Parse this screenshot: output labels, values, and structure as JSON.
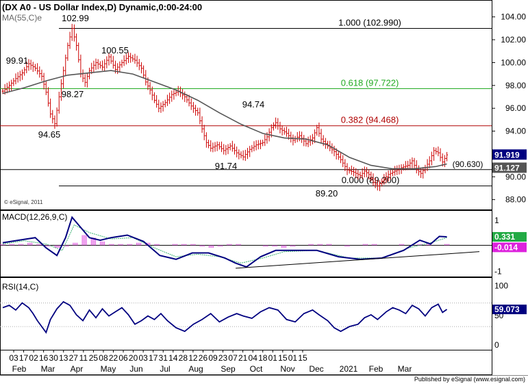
{
  "header": {
    "title": "(DX A0 - US Dollar Index,D) Dynamic,0:00-24:00",
    "ma_label": "MA(55,C)e",
    "copyright": "© eSignal, 2011",
    "published": "Published by eSignal (www.esignal.com)"
  },
  "colors": {
    "price": "#cc0000",
    "ma": "#555555",
    "line": "#000080",
    "fib_green": "#22aa22",
    "fib_red": "#b00000",
    "hist": "#dd44dd",
    "macd_signal": "#3cb371"
  },
  "chart_data": [
    {
      "type": "ohlc",
      "name": "price_panel",
      "title": "(DX A0 - US Dollar Index,D) Dynamic,0:00-24:00",
      "ylim": [
        87.5,
        105
      ],
      "y_ticks": [
        "104.00",
        "102.00",
        "100.00",
        "98.00",
        "96.00",
        "94.00",
        "92.00",
        "90.00",
        "88.00"
      ],
      "y_tick_values": [
        104,
        102,
        100,
        98,
        96,
        94,
        92,
        90,
        88
      ],
      "current_price": "91.919",
      "current_price_value": 91.919,
      "ma_value": "91.127",
      "ma_value_num": 91.127,
      "ma_label": "MA(55,C)e",
      "annotations": [
        {
          "text": "102.99"
        },
        {
          "text": "100.55"
        },
        {
          "text": "99.91"
        },
        {
          "text": "98.27"
        },
        {
          "text": "94.65"
        },
        {
          "text": "94.74"
        },
        {
          "text": "91.74"
        },
        {
          "text": "89.20"
        }
      ],
      "fib_levels": [
        {
          "text": "1.000 (102.990)",
          "value": 102.99,
          "color": "#000000"
        },
        {
          "text": "0.618 (97.722)",
          "value": 97.722,
          "color": "#22aa22"
        },
        {
          "text": "0.382 (94.468)",
          "value": 94.468,
          "color": "#b00000"
        },
        {
          "text": "0.000 (89.200)",
          "value": 89.2,
          "color": "#000000"
        },
        {
          "text": "(90.630)",
          "value": 90.63,
          "color": "#000000"
        }
      ],
      "close_path": [
        [
          0,
          97.5
        ],
        [
          6,
          98
        ],
        [
          12,
          98.6
        ],
        [
          18,
          99.1
        ],
        [
          24,
          99.9
        ],
        [
          30,
          99.5
        ],
        [
          36,
          98.8
        ],
        [
          40,
          97.4
        ],
        [
          44,
          95.5
        ],
        [
          48,
          94.65
        ],
        [
          52,
          97
        ],
        [
          56,
          99.3
        ],
        [
          60,
          101.5
        ],
        [
          64,
          102.99
        ],
        [
          68,
          101.5
        ],
        [
          72,
          99
        ],
        [
          76,
          98.27
        ],
        [
          80,
          99.3
        ],
        [
          86,
          100
        ],
        [
          92,
          99.6
        ],
        [
          98,
          100.5
        ],
        [
          104,
          99.4
        ],
        [
          110,
          100
        ],
        [
          116,
          100.55
        ],
        [
          122,
          100.2
        ],
        [
          128,
          99.5
        ],
        [
          132,
          98.3
        ],
        [
          136,
          97.6
        ],
        [
          140,
          96.7
        ],
        [
          144,
          96
        ],
        [
          150,
          96.5
        ],
        [
          156,
          97.2
        ],
        [
          162,
          97.5
        ],
        [
          168,
          97
        ],
        [
          174,
          96.2
        ],
        [
          180,
          95.6
        ],
        [
          184,
          94.2
        ],
        [
          188,
          93
        ],
        [
          192,
          92.5
        ],
        [
          198,
          92.8
        ],
        [
          204,
          92.3
        ],
        [
          210,
          92.7
        ],
        [
          216,
          92.1
        ],
        [
          222,
          91.74
        ],
        [
          228,
          92.4
        ],
        [
          234,
          92.8
        ],
        [
          240,
          93
        ],
        [
          244,
          93.5
        ],
        [
          248,
          94.3
        ],
        [
          252,
          94.74
        ],
        [
          256,
          94.2
        ],
        [
          262,
          93.8
        ],
        [
          268,
          93.2
        ],
        [
          274,
          93.6
        ],
        [
          280,
          92.9
        ],
        [
          286,
          93.4
        ],
        [
          290,
          94.3
        ],
        [
          294,
          93.3
        ],
        [
          300,
          92.7
        ],
        [
          306,
          92.2
        ],
        [
          312,
          91.5
        ],
        [
          318,
          90.6
        ],
        [
          324,
          90.4
        ],
        [
          330,
          90.1
        ],
        [
          334,
          90.5
        ],
        [
          338,
          90.2
        ],
        [
          342,
          89.5
        ],
        [
          346,
          89.2
        ],
        [
          350,
          89.6
        ],
        [
          356,
          90.2
        ],
        [
          362,
          90.5
        ],
        [
          368,
          90.8
        ],
        [
          374,
          91
        ],
        [
          378,
          91.4
        ],
        [
          382,
          90.6
        ],
        [
          386,
          90.3
        ],
        [
          390,
          90.8
        ],
        [
          394,
          91.4
        ],
        [
          398,
          92.3
        ],
        [
          402,
          92.1
        ],
        [
          406,
          91.3
        ],
        [
          410,
          91.919
        ]
      ],
      "ma_path": [
        [
          0,
          97.3
        ],
        [
          20,
          97.8
        ],
        [
          40,
          98.4
        ],
        [
          60,
          98.9
        ],
        [
          80,
          99.1
        ],
        [
          100,
          99.3
        ],
        [
          120,
          99
        ],
        [
          140,
          98.3
        ],
        [
          160,
          97.6
        ],
        [
          180,
          96.7
        ],
        [
          200,
          95.6
        ],
        [
          220,
          94.6
        ],
        [
          240,
          93.8
        ],
        [
          260,
          93.4
        ],
        [
          280,
          93.3
        ],
        [
          300,
          92.8
        ],
        [
          320,
          91.7
        ],
        [
          340,
          91
        ],
        [
          360,
          90.7
        ],
        [
          380,
          90.7
        ],
        [
          400,
          90.9
        ],
        [
          410,
          91.127
        ]
      ],
      "support_trendline": [
        [
          260,
          90.63
        ],
        [
          410,
          90.63
        ]
      ]
    },
    {
      "type": "line",
      "name": "macd_panel",
      "title": "MACD(12,26,9,C)",
      "ylim": [
        -1.2,
        1.3
      ],
      "y_ticks": [
        "1",
        "-1"
      ],
      "y_tick_values": [
        1,
        -1
      ],
      "macd_value": "0.331",
      "macd_value_num": 0.331,
      "hist_value": "-0.014",
      "hist_value_num": -0.014,
      "macd_path": [
        [
          0,
          0.1
        ],
        [
          15,
          0.2
        ],
        [
          30,
          0.3
        ],
        [
          40,
          -0.1
        ],
        [
          50,
          -0.4
        ],
        [
          58,
          0.3
        ],
        [
          64,
          1.1
        ],
        [
          70,
          0.8
        ],
        [
          80,
          0.3
        ],
        [
          90,
          0.2
        ],
        [
          100,
          0.3
        ],
        [
          115,
          0.4
        ],
        [
          130,
          0.15
        ],
        [
          145,
          -0.4
        ],
        [
          160,
          -0.55
        ],
        [
          175,
          -0.3
        ],
        [
          190,
          -0.3
        ],
        [
          205,
          -0.5
        ],
        [
          215,
          -0.7
        ],
        [
          225,
          -0.85
        ],
        [
          238,
          -0.45
        ],
        [
          252,
          -0.2
        ],
        [
          270,
          -0.2
        ],
        [
          290,
          -0.2
        ],
        [
          310,
          -0.45
        ],
        [
          330,
          -0.55
        ],
        [
          350,
          -0.5
        ],
        [
          370,
          -0.2
        ],
        [
          385,
          0.2
        ],
        [
          395,
          0.05
        ],
        [
          403,
          0.35
        ],
        [
          410,
          0.331
        ]
      ],
      "signal_path": [
        [
          0,
          0.05
        ],
        [
          20,
          0.18
        ],
        [
          40,
          0.05
        ],
        [
          55,
          -0.2
        ],
        [
          66,
          0.8
        ],
        [
          80,
          0.5
        ],
        [
          100,
          0.25
        ],
        [
          120,
          0.3
        ],
        [
          140,
          -0.1
        ],
        [
          160,
          -0.45
        ],
        [
          180,
          -0.35
        ],
        [
          200,
          -0.45
        ],
        [
          220,
          -0.7
        ],
        [
          240,
          -0.5
        ],
        [
          260,
          -0.25
        ],
        [
          290,
          -0.2
        ],
        [
          320,
          -0.5
        ],
        [
          350,
          -0.5
        ],
        [
          375,
          -0.1
        ],
        [
          395,
          0.1
        ],
        [
          410,
          0.3
        ]
      ],
      "hist_values": [
        0.05,
        0.05,
        0.05,
        0.1,
        0.05,
        -0.05,
        -0.1,
        -0.05,
        0.1,
        0.4,
        0.3,
        0.15,
        0.05,
        0.05,
        0.05,
        0.1,
        0.1,
        0.05,
        0,
        0.05,
        0.05,
        0.05,
        -0.05,
        -0.1,
        -0.05,
        0.05,
        0.05,
        0,
        0,
        -0.05,
        -0.05,
        -0.1,
        -0.05,
        0,
        0.05,
        0.05,
        0.05,
        0,
        -0.05,
        0,
        0.05,
        0.05,
        0,
        0,
        0.05,
        0,
        0.05,
        0.05,
        0,
        0.05
      ],
      "trendline": [
        [
          215,
          -0.9
        ],
        [
          440,
          -0.25
        ]
      ]
    },
    {
      "type": "line",
      "name": "rsi_panel",
      "title": "RSI(14,C)",
      "ylim": [
        -8,
        110
      ],
      "y_ticks": [
        "100",
        "50",
        "0"
      ],
      "y_tick_values": [
        100,
        50,
        0
      ],
      "rsi_value": "59.073",
      "rsi_value_num": 59.073,
      "rsi_path": [
        [
          0,
          62
        ],
        [
          6,
          66
        ],
        [
          12,
          58
        ],
        [
          18,
          70
        ],
        [
          24,
          62
        ],
        [
          28,
          52
        ],
        [
          32,
          40
        ],
        [
          36,
          30
        ],
        [
          40,
          20
        ],
        [
          44,
          42
        ],
        [
          50,
          60
        ],
        [
          56,
          72
        ],
        [
          62,
          66
        ],
        [
          68,
          50
        ],
        [
          74,
          40
        ],
        [
          80,
          58
        ],
        [
          86,
          45
        ],
        [
          92,
          60
        ],
        [
          98,
          48
        ],
        [
          104,
          55
        ],
        [
          110,
          62
        ],
        [
          116,
          50
        ],
        [
          122,
          34
        ],
        [
          128,
          40
        ],
        [
          134,
          48
        ],
        [
          140,
          42
        ],
        [
          146,
          52
        ],
        [
          152,
          40
        ],
        [
          160,
          28
        ],
        [
          168,
          22
        ],
        [
          176,
          34
        ],
        [
          184,
          42
        ],
        [
          192,
          52
        ],
        [
          200,
          38
        ],
        [
          208,
          46
        ],
        [
          216,
          52
        ],
        [
          222,
          48
        ],
        [
          230,
          44
        ],
        [
          238,
          55
        ],
        [
          246,
          62
        ],
        [
          254,
          58
        ],
        [
          262,
          42
        ],
        [
          270,
          38
        ],
        [
          278,
          52
        ],
        [
          286,
          58
        ],
        [
          292,
          50
        ],
        [
          300,
          40
        ],
        [
          306,
          28
        ],
        [
          312,
          22
        ],
        [
          320,
          30
        ],
        [
          328,
          34
        ],
        [
          334,
          45
        ],
        [
          340,
          50
        ],
        [
          346,
          42
        ],
        [
          354,
          55
        ],
        [
          360,
          62
        ],
        [
          366,
          58
        ],
        [
          372,
          52
        ],
        [
          378,
          66
        ],
        [
          384,
          60
        ],
        [
          390,
          48
        ],
        [
          396,
          62
        ],
        [
          402,
          68
        ],
        [
          406,
          54
        ],
        [
          410,
          59.073
        ]
      ],
      "hline": 70
    },
    {
      "type": "axis",
      "name": "x_axis",
      "dates": [
        "03",
        "17",
        "02",
        "16",
        "30",
        "13",
        "27",
        "11",
        "25",
        "08",
        "22",
        "06",
        "20",
        "03",
        "17",
        "31",
        "14",
        "28",
        "12",
        "26",
        "09",
        "23",
        "07",
        "21",
        "04",
        "18",
        "01",
        "15",
        "01",
        "15"
      ],
      "months": [
        "Feb",
        "Mar",
        "Apr",
        "May",
        "Jun",
        "Jul",
        "Aug",
        "Sep",
        "Oct",
        "Nov",
        "Dec",
        "2021",
        "Feb",
        "Mar"
      ]
    }
  ]
}
